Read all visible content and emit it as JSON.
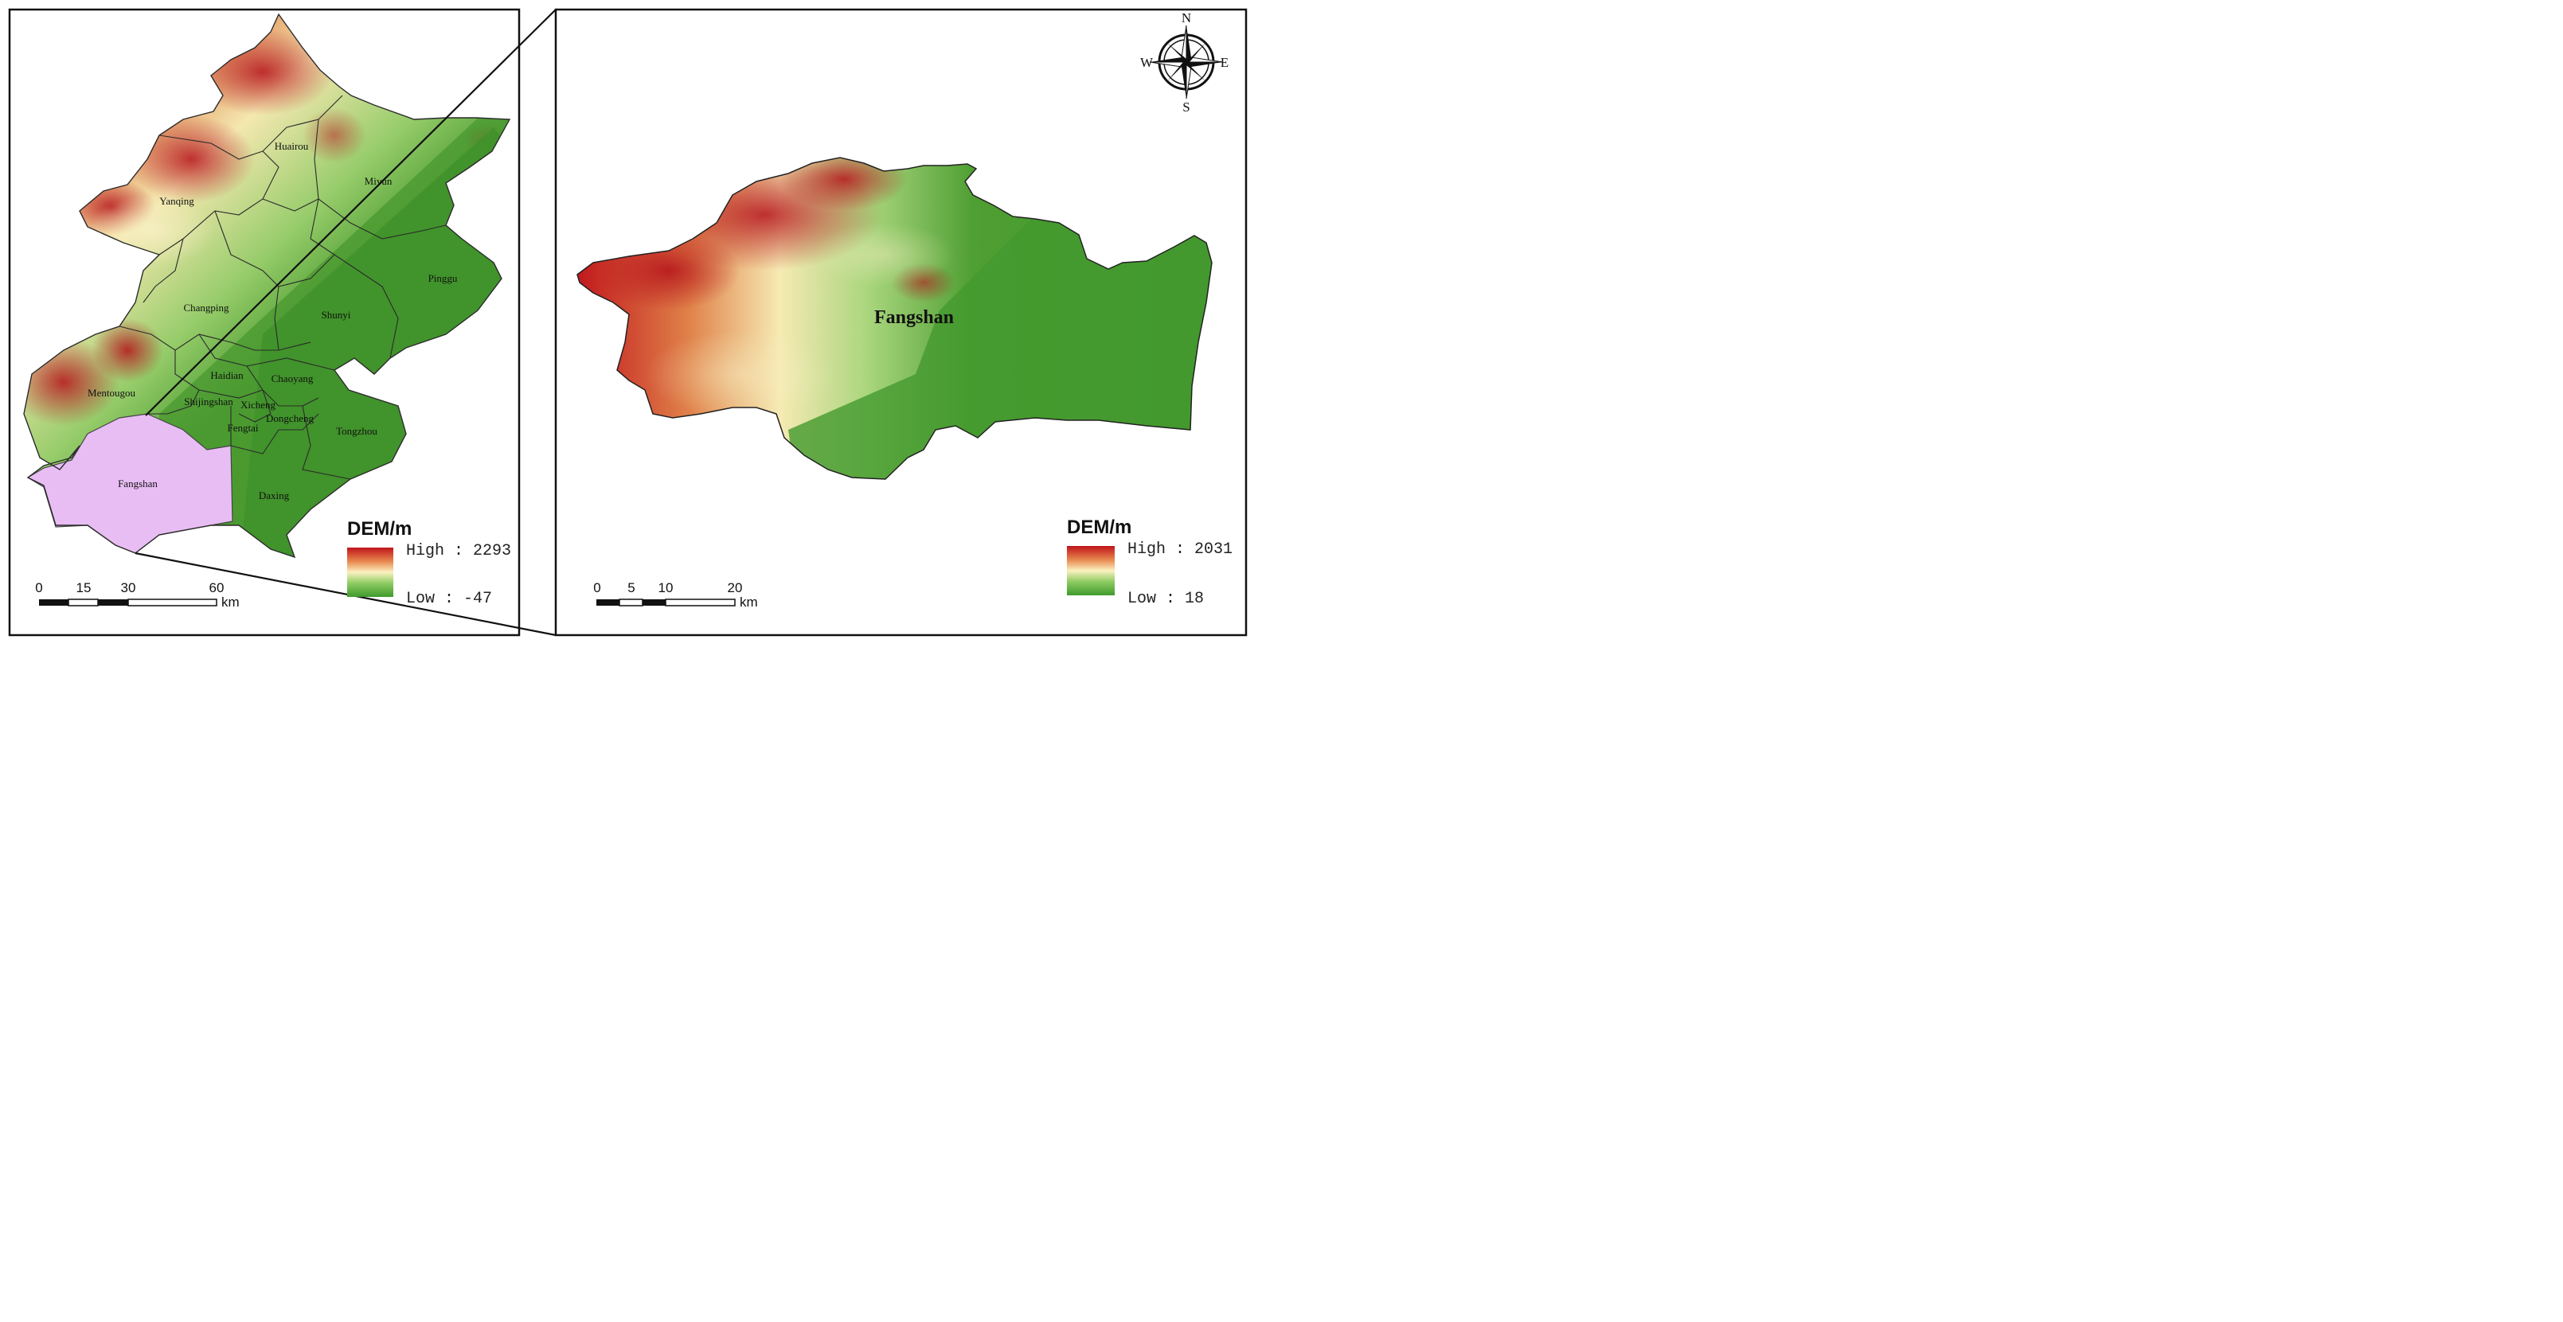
{
  "overview_map": {
    "districts": [
      {
        "id": "yanqing",
        "label": "Yanqing"
      },
      {
        "id": "huairou",
        "label": "Huairou"
      },
      {
        "id": "miyun",
        "label": "Miyun"
      },
      {
        "id": "pinggu",
        "label": "Pinggu"
      },
      {
        "id": "changping",
        "label": "Changping"
      },
      {
        "id": "shunyi",
        "label": "Shunyi"
      },
      {
        "id": "haidian",
        "label": "Haidian"
      },
      {
        "id": "chaoyang",
        "label": "Chaoyang"
      },
      {
        "id": "mentougou",
        "label": "Mentougou"
      },
      {
        "id": "shijingshan",
        "label": "Shijingshan"
      },
      {
        "id": "xicheng",
        "label": "Xicheng"
      },
      {
        "id": "dongcheng",
        "label": "Dongcheng"
      },
      {
        "id": "fengtai",
        "label": "Fengtai"
      },
      {
        "id": "tongzhou",
        "label": "Tongzhou"
      },
      {
        "id": "fangshan",
        "label": "Fangshan"
      },
      {
        "id": "daxing",
        "label": "Daxing"
      }
    ],
    "legend": {
      "title": "DEM/m",
      "high": "High : 2293",
      "low": "Low : -47",
      "colors": [
        "#c0141b",
        "#e8884f",
        "#fbf1c0",
        "#8fcc63",
        "#3f9a2c"
      ]
    },
    "scale_bar": {
      "ticks": [
        "0",
        "15",
        "30",
        "60"
      ],
      "unit": "km"
    },
    "highlight_color": "#e8bdf4"
  },
  "detail_map": {
    "label": "Fangshan",
    "legend": {
      "title": "DEM/m",
      "high": "High : 2031",
      "low": "Low : 18",
      "colors": [
        "#c0141b",
        "#e8884f",
        "#fbf1c0",
        "#8fcc63",
        "#3f9a2c"
      ]
    },
    "scale_bar": {
      "ticks": [
        "0",
        "5",
        "10",
        "20"
      ],
      "unit": "km"
    },
    "compass": {
      "n": "N",
      "s": "S",
      "e": "E",
      "w": "W"
    }
  }
}
